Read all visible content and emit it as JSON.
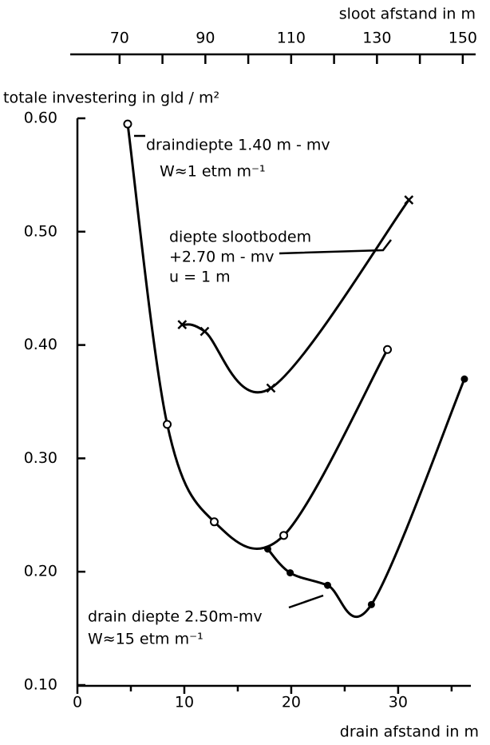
{
  "chart_data": {
    "type": "line",
    "x2_label": "sloot afstand in m",
    "xlabel": "drain afstand in m",
    "ylabel": "totale investering in gld / m²",
    "xlim": [
      0,
      36.8
    ],
    "xticks": [
      0,
      10,
      20,
      30
    ],
    "xminorticks": [
      5,
      15,
      25,
      35
    ],
    "x2lim": [
      58.5,
      153
    ],
    "x2ticks": [
      70,
      90,
      110,
      130,
      150
    ],
    "x2minorticks": [
      80,
      100,
      120,
      140
    ],
    "ylim": [
      0.1,
      0.6
    ],
    "yticks": [
      {
        "value": 0.1,
        "label": "0.10"
      },
      {
        "value": 0.2,
        "label": "0.20"
      },
      {
        "value": 0.3,
        "label": "0.30"
      },
      {
        "value": 0.4,
        "label": "0.40"
      },
      {
        "value": 0.5,
        "label": "0.50"
      },
      {
        "value": 0.6,
        "label": "0.60"
      }
    ],
    "color": "#000000",
    "series": [
      {
        "marker": "circle",
        "x": [
          4.7,
          8.4,
          12.8,
          19.3,
          29.0
        ],
        "values": [
          0.595,
          0.33,
          0.244,
          0.232,
          0.396
        ]
      },
      {
        "marker": "cross",
        "x": [
          9.8,
          11.9,
          18.1,
          31.0
        ],
        "values": [
          0.418,
          0.412,
          0.362,
          0.528
        ]
      },
      {
        "marker": "dot",
        "x": [
          17.8,
          19.9,
          23.4,
          27.5,
          36.2
        ],
        "values": [
          0.22,
          0.199,
          0.188,
          0.171,
          0.37
        ]
      }
    ],
    "annotations": [
      "draindiepte 1.40 m - mv",
      "W≈1 etm m⁻¹",
      "diepte slootbodem",
      "+2.70 m - mv",
      "u = 1 m",
      "drain diepte 2.50m-mv",
      "W≈15 etm m⁻¹"
    ]
  }
}
